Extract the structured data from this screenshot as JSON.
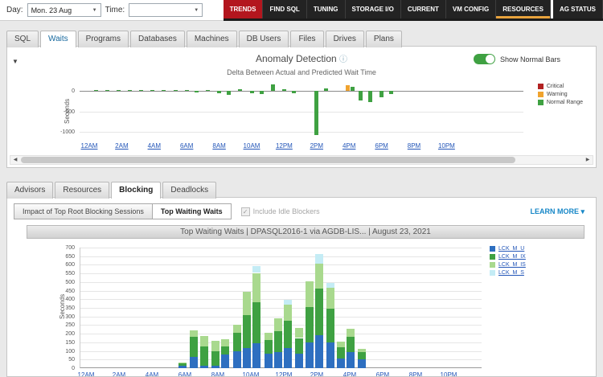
{
  "icons": {
    "chevron_down": "▼",
    "collapse": "▼",
    "info": "ⓘ",
    "check": "✓",
    "caret_down": "▾",
    "scroll_left": "◀",
    "scroll_right": "▶"
  },
  "topbar": {
    "day_label": "Day:",
    "day_value": "Mon. 23 Aug",
    "time_label": "Time:",
    "time_value": "",
    "nav_tabs": [
      {
        "label": "TRENDS",
        "state": "active"
      },
      {
        "label": "FIND SQL",
        "state": "normal"
      },
      {
        "label": "TUNING",
        "state": "normal"
      },
      {
        "label": "STORAGE I/O",
        "state": "normal"
      },
      {
        "label": "CURRENT",
        "state": "normal"
      },
      {
        "label": "VM CONFIG",
        "state": "normal"
      },
      {
        "label": "RESOURCES",
        "state": "highlighted"
      },
      {
        "label": "AG STATUS",
        "state": "detached"
      }
    ],
    "active_tab_color": "#b3161e",
    "highlight_underline_color": "#e8a33d"
  },
  "wait_tabs": {
    "items": [
      "SQL",
      "Waits",
      "Programs",
      "Databases",
      "Machines",
      "DB Users",
      "Files",
      "Drives",
      "Plans"
    ],
    "active": "Waits"
  },
  "anomaly_panel": {
    "title": "Anomaly Detection",
    "toggle_label": "Show Normal Bars",
    "toggle_on": true,
    "toggle_color": "#3fa142"
  },
  "blocking_tabs": {
    "items": [
      "Advisors",
      "Resources",
      "Blocking",
      "Deadlocks"
    ],
    "active": "Blocking"
  },
  "blocking_panel": {
    "button_impact": "Impact of Top Root Blocking Sessions",
    "button_top_waiting": "Top Waiting Waits",
    "active_button": "Top Waiting Waits",
    "checkbox_label": "Include Idle Blockers",
    "checkbox_checked": true,
    "checkbox_disabled": true,
    "learn_more_label": "LEARN MORE",
    "chart_header": "Top Waiting Waits   |   DPASQL2016-1 via AGDB-LIS...   |   August 23, 2021"
  },
  "chart_data": [
    {
      "type": "bar",
      "name": "anomaly-detection-delta",
      "title": "Delta Between Actual and Predicted Wait Time",
      "ylabel": "Seconds",
      "ylim": [
        -1150,
        250
      ],
      "yticks": [
        0,
        -500,
        -1000
      ],
      "grid": true,
      "legend_position": "right",
      "x_tick_labels": [
        "12AM",
        "2AM",
        "4AM",
        "6AM",
        "8AM",
        "10AM",
        "12PM",
        "2PM",
        "4PM",
        "6PM",
        "8PM",
        "10PM"
      ],
      "legend": [
        {
          "label": "Critical",
          "color": "#b22222"
        },
        {
          "label": "Warning",
          "color": "#f0a32e"
        },
        {
          "label": "Normal Range",
          "color": "#3fa142"
        }
      ],
      "series_colors": {
        "normal": "#3fa142",
        "warning": "#f0a32e",
        "critical": "#b22222"
      },
      "bars": [
        {
          "hour": 0.4,
          "value": 18,
          "level": "normal"
        },
        {
          "hour": 1.1,
          "value": 12,
          "level": "normal"
        },
        {
          "hour": 1.8,
          "value": 14,
          "level": "normal"
        },
        {
          "hour": 2.5,
          "value": 10,
          "level": "normal"
        },
        {
          "hour": 3.2,
          "value": 14,
          "level": "normal"
        },
        {
          "hour": 3.9,
          "value": 10,
          "level": "normal"
        },
        {
          "hour": 4.6,
          "value": 12,
          "level": "normal"
        },
        {
          "hour": 5.3,
          "value": 16,
          "level": "normal"
        },
        {
          "hour": 6.0,
          "value": 20,
          "level": "normal"
        },
        {
          "hour": 6.6,
          "value": -40,
          "level": "normal"
        },
        {
          "hour": 7.3,
          "value": 24,
          "level": "normal"
        },
        {
          "hour": 8.0,
          "value": -60,
          "level": "normal"
        },
        {
          "hour": 8.6,
          "value": -105,
          "level": "normal"
        },
        {
          "hour": 9.3,
          "value": 32,
          "level": "normal"
        },
        {
          "hour": 10.0,
          "value": -70,
          "level": "normal"
        },
        {
          "hour": 10.6,
          "value": -85,
          "level": "normal"
        },
        {
          "hour": 11.3,
          "value": 145,
          "level": "normal"
        },
        {
          "hour": 12.0,
          "value": 35,
          "level": "normal"
        },
        {
          "hour": 12.6,
          "value": -60,
          "level": "normal"
        },
        {
          "hour": 14.0,
          "value": -1080,
          "level": "normal"
        },
        {
          "hour": 14.6,
          "value": 65,
          "level": "normal"
        },
        {
          "hour": 15.9,
          "value": 125,
          "level": "warning"
        },
        {
          "hour": 16.2,
          "value": 100,
          "level": "normal"
        },
        {
          "hour": 16.7,
          "value": -240,
          "level": "normal"
        },
        {
          "hour": 17.3,
          "value": -270,
          "level": "normal"
        },
        {
          "hour": 18.0,
          "value": -160,
          "level": "normal"
        },
        {
          "hour": 18.6,
          "value": -75,
          "level": "normal"
        }
      ]
    },
    {
      "type": "bar",
      "stacked": true,
      "name": "top-waiting-waits",
      "title": "Top Waiting Waits | DPASQL2016-1 via AGDB-LIS... | August 23, 2021",
      "ylabel": "Seconds",
      "ylim": [
        0,
        700
      ],
      "ytick_step": 50,
      "grid": true,
      "legend_position": "right",
      "x_tick_labels": [
        "12AM",
        "2AM",
        "4AM",
        "6AM",
        "8AM",
        "10AM",
        "12PM",
        "2PM",
        "4PM",
        "6PM",
        "8PM",
        "10PM"
      ],
      "series": [
        {
          "name": "LCK_M_U",
          "color": "#2e6fc0"
        },
        {
          "name": "LCK_M_IX",
          "color": "#3fa142"
        },
        {
          "name": "LCK_M_IS",
          "color": "#a9d98e"
        },
        {
          "name": "LCK_M_S",
          "color": "#c4ecf5"
        }
      ],
      "bars": [
        {
          "hour": 5.8,
          "values": [
            12,
            14,
            6,
            0
          ]
        },
        {
          "hour": 6.5,
          "values": [
            65,
            115,
            38,
            0
          ]
        },
        {
          "hour": 7.1,
          "values": [
            15,
            112,
            62,
            0
          ]
        },
        {
          "hour": 7.8,
          "values": [
            15,
            85,
            58,
            0
          ]
        },
        {
          "hour": 8.4,
          "values": [
            80,
            45,
            45,
            0
          ]
        },
        {
          "hour": 9.1,
          "values": [
            100,
            105,
            48,
            0
          ]
        },
        {
          "hour": 9.7,
          "values": [
            115,
            195,
            132,
            0
          ]
        },
        {
          "hour": 10.3,
          "values": [
            145,
            240,
            168,
            38
          ]
        },
        {
          "hour": 11.0,
          "values": [
            85,
            80,
            42,
            0
          ]
        },
        {
          "hour": 11.6,
          "values": [
            95,
            120,
            76,
            0
          ]
        },
        {
          "hour": 12.2,
          "values": [
            118,
            158,
            92,
            28
          ]
        },
        {
          "hour": 12.9,
          "values": [
            85,
            90,
            57,
            0
          ]
        },
        {
          "hour": 13.5,
          "values": [
            150,
            205,
            148,
            0
          ]
        },
        {
          "hour": 14.1,
          "values": [
            192,
            268,
            148,
            55
          ]
        },
        {
          "hour": 14.8,
          "values": [
            148,
            198,
            120,
            28
          ]
        },
        {
          "hour": 15.4,
          "values": [
            58,
            62,
            35,
            0
          ]
        },
        {
          "hour": 16.0,
          "values": [
            95,
            88,
            45,
            0
          ]
        },
        {
          "hour": 16.7,
          "values": [
            52,
            40,
            18,
            0
          ]
        }
      ]
    }
  ]
}
